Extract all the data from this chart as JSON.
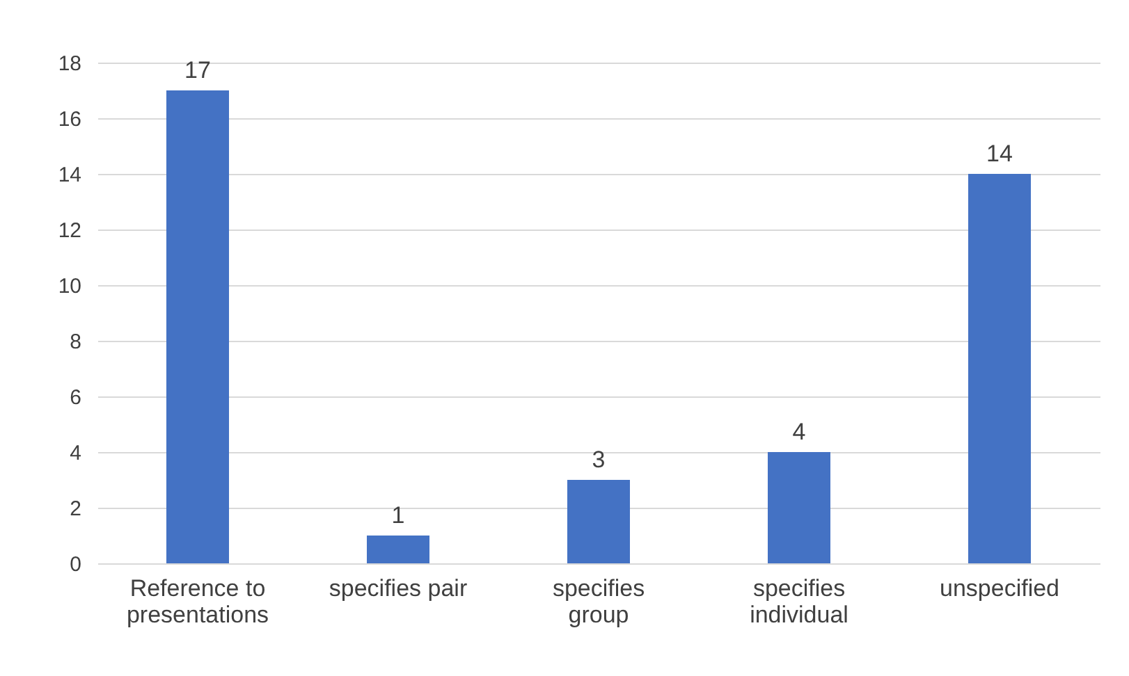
{
  "chart_data": {
    "type": "bar",
    "categories": [
      "Reference to presentations",
      "specifies pair",
      "specifies group",
      "specifies individual",
      "unspecified"
    ],
    "values": [
      17,
      1,
      3,
      4,
      14
    ],
    "color": "#4472c4",
    "ylim": [
      0,
      18
    ],
    "yticks": [
      0,
      2,
      4,
      6,
      8,
      10,
      12,
      14,
      16,
      18
    ],
    "grid": "y",
    "data_labels": true
  }
}
